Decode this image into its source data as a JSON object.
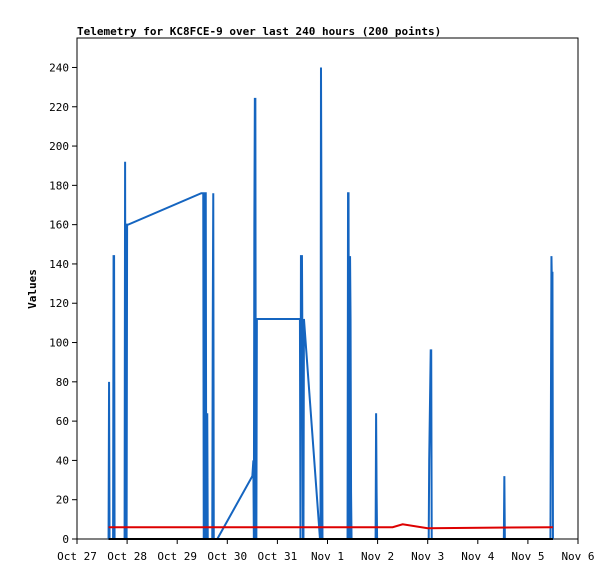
{
  "chart_data": {
    "type": "line",
    "title": "Telemetry for KC8FCE-9 over last 240 hours (200 points)",
    "xlabel": "",
    "ylabel": "Values",
    "ylim": [
      0,
      255
    ],
    "yticks": [
      0,
      20,
      40,
      60,
      80,
      100,
      120,
      140,
      160,
      180,
      200,
      220,
      240
    ],
    "xlim": [
      "Oct 27",
      "Nov 6"
    ],
    "xticks": [
      "Oct 27",
      "Oct 28",
      "Oct 29",
      "Oct 30",
      "Oct 31",
      "Nov 1",
      "Nov 2",
      "Nov 3",
      "Nov 4",
      "Nov 5",
      "Nov 6"
    ],
    "grid": false,
    "series": [
      {
        "color": "#1565c0",
        "points": [
          [
            0.63,
            0
          ],
          [
            0.64,
            80
          ],
          [
            0.65,
            0
          ],
          [
            0.72,
            0
          ],
          [
            0.73,
            144
          ],
          [
            0.74,
            144
          ],
          [
            0.75,
            0
          ],
          [
            0.95,
            0
          ],
          [
            0.96,
            192
          ],
          [
            0.97,
            0
          ],
          [
            0.99,
            0
          ],
          [
            1.0,
            160
          ],
          [
            1.02,
            160
          ],
          [
            2.48,
            176
          ],
          [
            2.52,
            176
          ],
          [
            2.53,
            0
          ],
          [
            2.55,
            0
          ],
          [
            2.56,
            176
          ],
          [
            2.57,
            176
          ],
          [
            2.58,
            0
          ],
          [
            2.59,
            0
          ],
          [
            2.6,
            64
          ],
          [
            2.61,
            0
          ],
          [
            2.7,
            0
          ],
          [
            2.71,
            112
          ],
          [
            2.72,
            176
          ],
          [
            2.73,
            0
          ],
          [
            2.8,
            0
          ],
          [
            3.5,
            32
          ],
          [
            3.52,
            40
          ],
          [
            3.53,
            0
          ],
          [
            3.54,
            160
          ],
          [
            3.55,
            224
          ],
          [
            3.56,
            224
          ],
          [
            3.57,
            0
          ],
          [
            3.58,
            0
          ],
          [
            3.59,
            112
          ],
          [
            3.6,
            112
          ],
          [
            4.45,
            112
          ],
          [
            4.46,
            0
          ],
          [
            4.47,
            144
          ],
          [
            4.49,
            144
          ],
          [
            4.5,
            96
          ],
          [
            4.51,
            0
          ],
          [
            4.52,
            0
          ],
          [
            4.53,
            112
          ],
          [
            4.85,
            0
          ],
          [
            4.86,
            0
          ],
          [
            4.87,
            240
          ],
          [
            4.89,
            80
          ],
          [
            4.9,
            0
          ],
          [
            5.4,
            0
          ],
          [
            5.41,
            176
          ],
          [
            5.42,
            176
          ],
          [
            5.43,
            0
          ],
          [
            5.44,
            0
          ],
          [
            5.45,
            144
          ],
          [
            5.46,
            112
          ],
          [
            5.47,
            24
          ],
          [
            5.48,
            0
          ],
          [
            5.96,
            0
          ],
          [
            5.97,
            64
          ],
          [
            5.98,
            24
          ],
          [
            5.99,
            0
          ],
          [
            7.02,
            0
          ],
          [
            7.03,
            40
          ],
          [
            7.06,
            96
          ],
          [
            7.07,
            96
          ],
          [
            7.08,
            0
          ],
          [
            8.52,
            0
          ],
          [
            8.53,
            32
          ],
          [
            8.54,
            0
          ],
          [
            9.45,
            0
          ],
          [
            9.46,
            72
          ],
          [
            9.47,
            144
          ],
          [
            9.48,
            128
          ],
          [
            9.49,
            136
          ],
          [
            9.5,
            0
          ]
        ]
      },
      {
        "color": "#dd0000",
        "points": [
          [
            0.63,
            6
          ],
          [
            6.3,
            6
          ],
          [
            6.5,
            7.5
          ],
          [
            7.0,
            5.5
          ],
          [
            9.5,
            6
          ]
        ]
      },
      {
        "color": "#000000",
        "points": [
          [
            0.63,
            0
          ],
          [
            9.5,
            0
          ]
        ]
      }
    ]
  }
}
